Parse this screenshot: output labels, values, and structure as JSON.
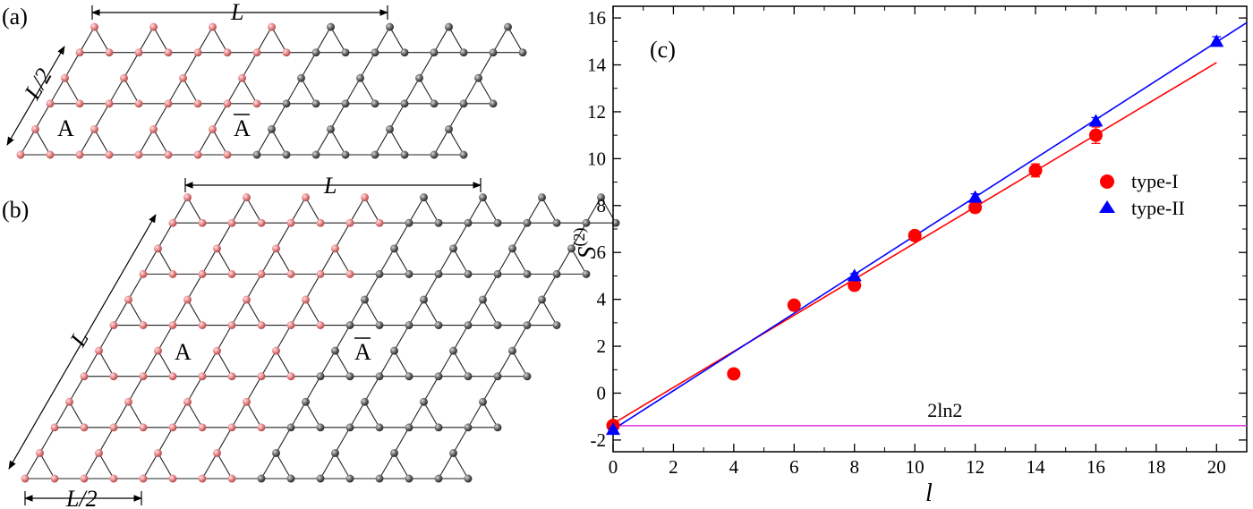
{
  "panels": {
    "a": {
      "label": "(a)",
      "width_label": "L",
      "side_label": "L/2",
      "region_a": "A",
      "region_abar": "A"
    },
    "b": {
      "label": "(b)",
      "width_label": "L",
      "side_label": "L",
      "bottom_label": "L/2",
      "region_a": "A",
      "region_abar": "A"
    }
  },
  "colors": {
    "region_a_site": "#e8898a",
    "region_abar_site": "#6b6b6b",
    "bond": "#222222",
    "type_I": "#ff0000",
    "type_II": "#0000ff",
    "reference_line": "#e040e0"
  },
  "chart_data": {
    "type": "scatter",
    "panel_label": "(c)",
    "xlabel": "l",
    "ylabel": "S",
    "ylabel_superscript": "(2)",
    "xlim": [
      0,
      21
    ],
    "ylim": [
      -2.5,
      16.5
    ],
    "xticks": [
      0,
      2,
      4,
      6,
      8,
      10,
      12,
      14,
      16,
      18,
      20
    ],
    "yticks": [
      -2,
      0,
      2,
      4,
      6,
      8,
      10,
      12,
      14,
      16
    ],
    "legend_position": "right",
    "series": [
      {
        "name": "type-I",
        "marker": "circle",
        "x": [
          0,
          4,
          6,
          8,
          10,
          12,
          14,
          16
        ],
        "y": [
          -1.38,
          0.82,
          3.75,
          4.6,
          6.72,
          7.92,
          9.5,
          11.0
        ],
        "err": [
          0.08,
          0.08,
          0.1,
          0.12,
          0.15,
          0.2,
          0.28,
          0.35
        ]
      },
      {
        "name": "type-II",
        "marker": "triangle",
        "x": [
          0,
          8,
          12,
          16,
          20
        ],
        "y": [
          -1.55,
          5.0,
          8.35,
          11.6,
          15.0
        ],
        "err": [
          0.05,
          0.1,
          0.15,
          0.15,
          0.2
        ]
      }
    ],
    "fits": [
      {
        "series": "type-I",
        "x": [
          0,
          20
        ],
        "y": [
          -1.3,
          14.1
        ]
      },
      {
        "series": "type-II",
        "x": [
          0,
          21
        ],
        "y": [
          -1.55,
          15.8
        ]
      }
    ],
    "reference": {
      "label": "2ln2",
      "y": -1.386
    }
  }
}
